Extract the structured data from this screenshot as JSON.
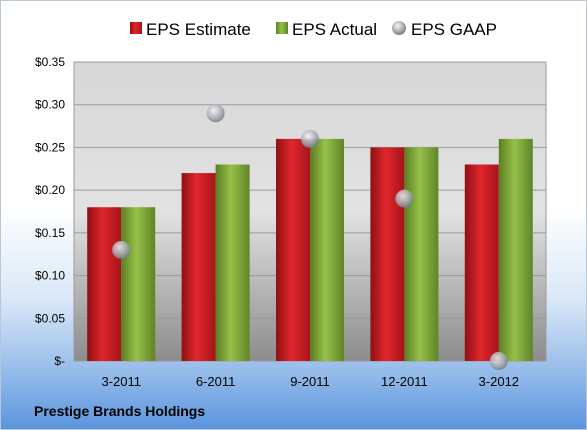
{
  "company": "Prestige Brands Holdings",
  "colors": {
    "estimate": "#cc1f25",
    "actual": "#7ea63a",
    "gaap": "#a9adb3"
  },
  "chart_data": {
    "type": "bar",
    "categories": [
      "3-2011",
      "6-2011",
      "9-2011",
      "12-2011",
      "3-2012"
    ],
    "series": [
      {
        "name": "EPS Estimate",
        "values": [
          0.18,
          0.22,
          0.26,
          0.25,
          0.23
        ],
        "kind": "bar"
      },
      {
        "name": "EPS Actual",
        "values": [
          0.18,
          0.23,
          0.26,
          0.25,
          0.26
        ],
        "kind": "bar"
      },
      {
        "name": "EPS GAAP",
        "values": [
          0.13,
          0.29,
          0.26,
          0.19,
          0.0
        ],
        "kind": "scatter"
      }
    ],
    "ylim": [
      0,
      0.35
    ],
    "yticks": [
      0,
      0.05,
      0.1,
      0.15,
      0.2,
      0.25,
      0.3,
      0.35
    ],
    "ytick_labels": [
      "$-",
      "$0.05",
      "$0.10",
      "$0.15",
      "$0.20",
      "$0.25",
      "$0.30",
      "$0.35"
    ],
    "legend_position": "top",
    "grid": true
  }
}
